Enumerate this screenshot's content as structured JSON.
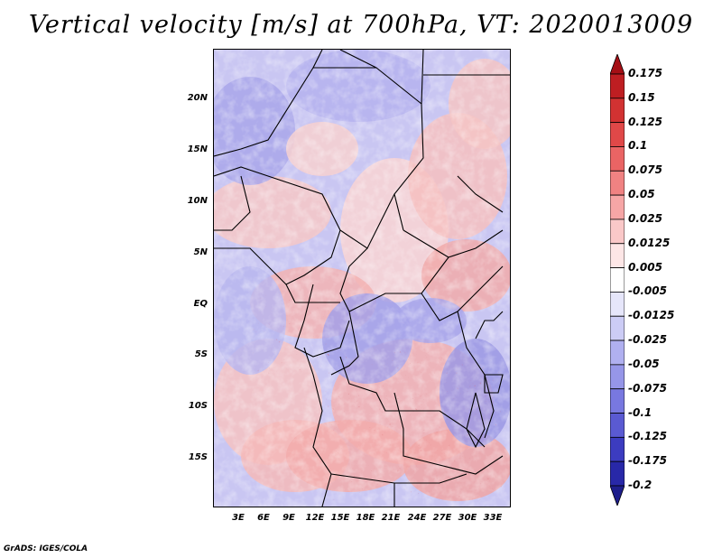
{
  "title": "Vertical velocity [m/s] at 700hPa, VT: 2020013009",
  "map": {
    "lat_labels": [
      "20N",
      "15N",
      "10N",
      "5N",
      "EQ",
      "5S",
      "10S",
      "15S"
    ],
    "lon_labels": [
      "3E",
      "6E",
      "9E",
      "12E",
      "15E",
      "18E",
      "21E",
      "24E",
      "27E",
      "30E",
      "33E"
    ],
    "field_name": "Vertical velocity",
    "level": "700hPa",
    "valid_time": "2020013009"
  },
  "colorbar": {
    "labels": [
      "0.175",
      "0.15",
      "0.125",
      "0.1",
      "0.075",
      "0.05",
      "0.025",
      "0.0125",
      "0.005",
      "-0.005",
      "-0.0125",
      "-0.025",
      "-0.05",
      "-0.075",
      "-0.1",
      "-0.125",
      "-0.175",
      "-0.2"
    ],
    "colors": [
      "#a50f15",
      "#be1e22",
      "#d23232",
      "#e04848",
      "#ea6464",
      "#f08282",
      "#f6a6a6",
      "#fac8c8",
      "#fde6e6",
      "#ffffff",
      "#e6e6fa",
      "#ccccf5",
      "#b0b0f0",
      "#9696e8",
      "#7878e0",
      "#5a5ad2",
      "#3c3cc0",
      "#2828a8",
      "#1e1e8c"
    ]
  },
  "credit": "GrADS: IGES/COLA"
}
